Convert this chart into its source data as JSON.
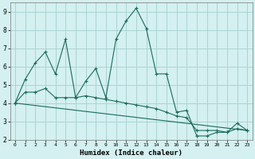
{
  "xlabel": "Humidex (Indice chaleur)",
  "bg_color": "#d4f0f0",
  "grid_color": "#aad4d4",
  "line_color": "#1a6b5a",
  "xlim": [
    -0.5,
    23.5
  ],
  "ylim": [
    2,
    9.5
  ],
  "xticks": [
    0,
    1,
    2,
    3,
    4,
    5,
    6,
    7,
    8,
    9,
    10,
    11,
    12,
    13,
    14,
    15,
    16,
    17,
    18,
    19,
    20,
    21,
    22,
    23
  ],
  "yticks": [
    2,
    3,
    4,
    5,
    6,
    7,
    8,
    9
  ],
  "curve1_x": [
    0,
    1,
    2,
    3,
    4,
    5,
    6,
    7,
    8,
    9,
    10,
    11,
    12,
    13,
    14,
    15,
    16,
    17,
    18,
    19,
    20,
    21,
    22,
    23
  ],
  "curve1_y": [
    4.0,
    5.3,
    6.2,
    6.8,
    5.6,
    7.5,
    4.3,
    5.2,
    5.9,
    4.3,
    7.5,
    8.5,
    9.2,
    8.1,
    5.6,
    5.6,
    3.5,
    3.6,
    2.2,
    2.2,
    2.4,
    2.4,
    2.9,
    2.5
  ],
  "curve2_x": [
    0,
    1,
    2,
    3,
    4,
    5,
    6,
    7,
    8,
    9,
    10,
    11,
    12,
    13,
    14,
    15,
    16,
    17,
    18,
    19,
    20,
    21,
    22,
    23
  ],
  "curve2_y": [
    4.0,
    4.6,
    4.6,
    4.8,
    4.3,
    4.3,
    4.3,
    4.4,
    4.3,
    4.2,
    4.1,
    4.0,
    3.9,
    3.8,
    3.7,
    3.5,
    3.3,
    3.2,
    2.5,
    2.5,
    2.5,
    2.4,
    2.6,
    2.5
  ],
  "curve3_x": [
    0,
    23
  ],
  "curve3_y": [
    4.0,
    2.5
  ]
}
